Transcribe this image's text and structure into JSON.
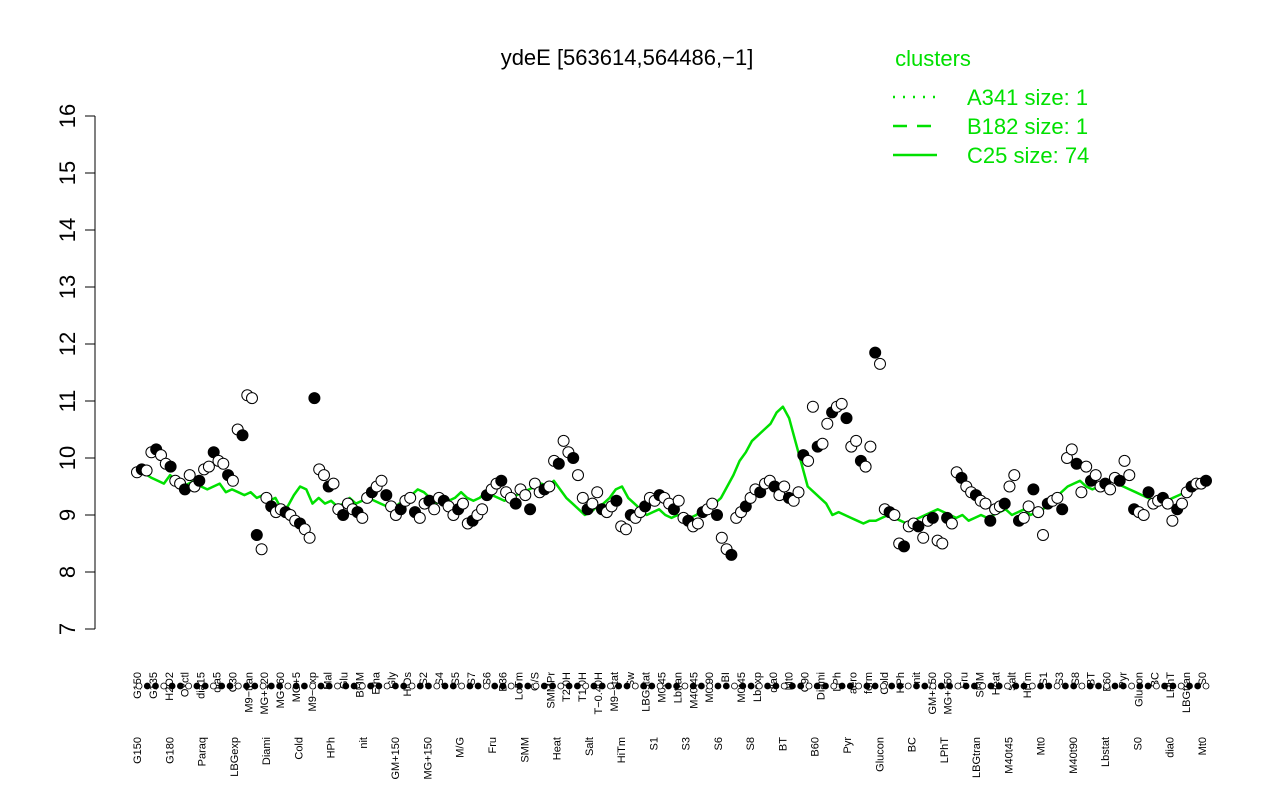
{
  "chart_data": {
    "type": "line",
    "title": "ydeE [563614,564486,−1]",
    "xlabel": "",
    "ylabel": "",
    "ylim": [
      7,
      16
    ],
    "yticks": [
      7,
      8,
      9,
      10,
      11,
      12,
      13,
      14,
      15,
      16
    ],
    "grid": false,
    "legend_position": "top-right",
    "legend": {
      "title": "clusters",
      "items": [
        {
          "label": "A341 size: 1",
          "style": "dotted"
        },
        {
          "label": "B182 size: 1",
          "style": "dashed"
        },
        {
          "label": "C25 size: 74",
          "style": "solid"
        }
      ]
    },
    "colors": {
      "cluster_line": "#00e000",
      "points_stroke": "#000000",
      "axis": "#000000",
      "filled_point": "#000000",
      "open_point": "#ffffff"
    },
    "x_tick_labels_top": [
      "G150",
      "G135",
      "H2O2",
      "Oxctl",
      "dia15",
      "dia5",
      "C30",
      "M9−tran",
      "MG+120",
      "MG+60",
      "MG+5",
      "M9−exp",
      "Mal",
      "Glu",
      "BMM",
      "Etha",
      "Gly",
      "HiOs",
      "S2",
      "S4",
      "S5",
      "S7",
      "S6",
      "B36",
      "LoTm",
      "G/S",
      "SMMPr",
      "T2.0H",
      "T1.0H",
      "T−0.40H",
      "M9−stat",
      "Sw",
      "LBGstat",
      "M0t45",
      "Lbtran",
      "M40t45",
      "M0t90",
      "BI",
      "M0t45",
      "Lbexp",
      "dia0",
      "Mt0",
      "C90",
      "Diami",
      "LPh",
      "aero",
      "ferm",
      "Cold",
      "HPh",
      "nit",
      "GM+150",
      "MG+150",
      "Fru",
      "SMM",
      "Heat",
      "Salt",
      "HiTm",
      "S1",
      "S3",
      "S8",
      "BT",
      "B60",
      "Pyr",
      "Glucon",
      "BC",
      "LPhT",
      "LBGtran",
      "S0"
    ],
    "x_tick_labels_bottom": [
      "G150",
      "G180",
      "Paraq",
      "LBGexp",
      "Diami",
      "Cold",
      "HPh",
      "nit",
      "GM+150",
      "MG+150",
      "M/G",
      "Fru",
      "SMM",
      "Heat",
      "Salt",
      "HiTm",
      "S1",
      "S3",
      "S6",
      "S8",
      "BT",
      "B60",
      "Pyr",
      "Glucon",
      "BC",
      "LPhT",
      "LBGtran",
      "M40t45",
      "Mt0",
      "M40t90",
      "Lbstat",
      "S0",
      "dia0",
      "Mt0"
    ],
    "series": [
      {
        "values": [
          9.75,
          9.78,
          9.72,
          9.65,
          9.6,
          9.55,
          9.7,
          9.6,
          9.5,
          9.55,
          9.6,
          9.5,
          9.45,
          9.5,
          9.55,
          9.4,
          9.45,
          9.4,
          9.35,
          9.4,
          9.3,
          9.35,
          9.25,
          9.3,
          9.1,
          9.15,
          9.35,
          9.5,
          9.45,
          9.2,
          9.3,
          9.2,
          9.25,
          9.15,
          9.2,
          9.3,
          9.2,
          9.25,
          9.3,
          9.25,
          9.2,
          9.15,
          9.1,
          9.2,
          9.25,
          9.35,
          9.45,
          9.4,
          9.3,
          9.2,
          9.35,
          9.25,
          9.3,
          9.4,
          9.3,
          9.25,
          9.3,
          9.4,
          9.35,
          9.3,
          9.25,
          9.3,
          9.35,
          9.4,
          9.45,
          9.5,
          9.55,
          9.5,
          9.6,
          9.45,
          9.3,
          9.2,
          9.1,
          9.0,
          9.05,
          9.15,
          9.2,
          9.3,
          9.45,
          9.5,
          9.3,
          9.2,
          9.1,
          9.0,
          9.05,
          9.1,
          9.0,
          8.95,
          9.0,
          8.9,
          8.95,
          9.0,
          9.1,
          9.05,
          9.2,
          9.3,
          9.5,
          9.7,
          9.95,
          10.1,
          10.3,
          10.4,
          10.5,
          10.6,
          10.8,
          10.9,
          10.7,
          10.3,
          9.9,
          9.5,
          9.4,
          9.3,
          9.2,
          9.0,
          9.05,
          9.0,
          8.95,
          8.9,
          8.85,
          8.9,
          8.9,
          8.95,
          9.0,
          8.95,
          8.9,
          8.85,
          8.9,
          8.95,
          9.0,
          9.05,
          9.1,
          9.05,
          9.0,
          8.95,
          9.0,
          8.9,
          8.95,
          9.0,
          8.95,
          9.0,
          9.05,
          9.1,
          9.0,
          9.05,
          9.1,
          9.0,
          9.05,
          9.1,
          9.2,
          9.3,
          9.4,
          9.5,
          9.55,
          9.6,
          9.5,
          9.45,
          9.5,
          9.55,
          9.6,
          9.55,
          9.5,
          9.45,
          9.4,
          9.35,
          9.3,
          9.25,
          9.2,
          9.25,
          9.3,
          9.35,
          9.4,
          9.45,
          9.5,
          9.55,
          9.6
        ]
      }
    ],
    "points": [
      9.75,
      9.8,
      9.78,
      10.1,
      10.15,
      10.05,
      9.9,
      9.85,
      9.6,
      9.55,
      9.45,
      9.7,
      9.5,
      9.6,
      9.8,
      9.85,
      10.1,
      9.95,
      9.9,
      9.7,
      9.6,
      10.5,
      10.4,
      11.1,
      11.05,
      8.65,
      8.4,
      9.3,
      9.15,
      9.05,
      9.1,
      9.05,
      9.0,
      8.9,
      8.85,
      8.75,
      8.6,
      11.05,
      9.8,
      9.7,
      9.5,
      9.55,
      9.1,
      9.0,
      9.2,
      9.1,
      9.05,
      8.95,
      9.3,
      9.4,
      9.5,
      9.6,
      9.35,
      9.15,
      9.0,
      9.1,
      9.25,
      9.3,
      9.05,
      8.95,
      9.2,
      9.25,
      9.1,
      9.3,
      9.25,
      9.15,
      9.0,
      9.1,
      9.2,
      8.85,
      8.9,
      9.0,
      9.1,
      9.35,
      9.45,
      9.55,
      9.6,
      9.4,
      9.3,
      9.2,
      9.45,
      9.35,
      9.1,
      9.55,
      9.4,
      9.45,
      9.5,
      9.95,
      9.9,
      10.3,
      10.1,
      10.0,
      9.7,
      9.3,
      9.1,
      9.2,
      9.4,
      9.1,
      9.05,
      9.15,
      9.25,
      8.8,
      8.75,
      9.0,
      8.95,
      9.05,
      9.15,
      9.3,
      9.25,
      9.35,
      9.3,
      9.2,
      9.1,
      9.25,
      8.95,
      8.9,
      8.8,
      8.85,
      9.05,
      9.1,
      9.2,
      9.0,
      8.6,
      8.4,
      8.3,
      8.95,
      9.05,
      9.15,
      9.3,
      9.45,
      9.4,
      9.55,
      9.6,
      9.5,
      9.35,
      9.5,
      9.3,
      9.25,
      9.4,
      10.05,
      9.95,
      10.9,
      10.2,
      10.25,
      10.6,
      10.8,
      10.9,
      10.95,
      10.7,
      10.2,
      10.3,
      9.95,
      9.85,
      10.2,
      11.85,
      11.65,
      9.1,
      9.05,
      9.0,
      8.5,
      8.45,
      8.8,
      8.85,
      8.8,
      8.6,
      8.9,
      8.95,
      8.55,
      8.5,
      8.95,
      8.85,
      9.75,
      9.65,
      9.5,
      9.4,
      9.35,
      9.25,
      9.2,
      8.9,
      9.1,
      9.15,
      9.2,
      9.5,
      9.7,
      8.9,
      8.95,
      9.15,
      9.45,
      9.05,
      8.65,
      9.2,
      9.25,
      9.3,
      9.1,
      10.0,
      10.15,
      9.9,
      9.4,
      9.85,
      9.6,
      9.7,
      9.5,
      9.55,
      9.45,
      9.65,
      9.6,
      9.95,
      9.7,
      9.1,
      9.05,
      9.0,
      9.4,
      9.2,
      9.25,
      9.3,
      9.2,
      8.9,
      9.1,
      9.2,
      9.4,
      9.5,
      9.55,
      9.55,
      9.6
    ]
  }
}
